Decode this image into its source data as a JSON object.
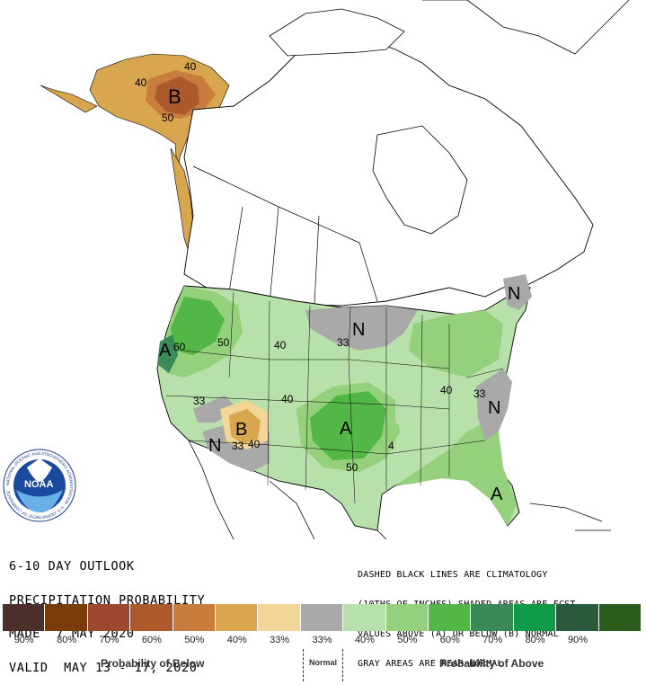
{
  "title_lines": [
    "6-10 DAY OUTLOOK",
    "PRECIPITATION PROBABILITY",
    "MADE  7 MAY 2020",
    "VALID  MAY 13 - 17, 2020"
  ],
  "note_lines": [
    "DASHED BLACK LINES ARE CLIMATOLOGY",
    "(10THS OF INCHES) SHADED AREAS ARE FCST",
    "VALUES ABOVE (A) OR BELOW (B) NORMAL",
    "GRAY AREAS ARE NEAR-NORMAL"
  ],
  "logo_text": "NOAA",
  "logo_ring_text": "NATIONAL OCEANIC AND ATMOSPHERIC ADMINISTRATION · U.S. DEPARTMENT OF COMMERCE",
  "legend": {
    "colors": [
      "#4a2f2a",
      "#7a3d0a",
      "#9c4830",
      "#ac5a2c",
      "#c97d3c",
      "#d9a650",
      "#f3d598",
      "#a9a9a9",
      "#b8e0aa",
      "#95d07c",
      "#52b746",
      "#3a8a57",
      "#0e9a46",
      "#2a5a3c",
      "#2a5a1c"
    ],
    "labels": [
      "90%",
      "80%",
      "70%",
      "60%",
      "50%",
      "40%",
      "33%",
      "33%",
      "40%",
      "50%",
      "60%",
      "70%",
      "80%",
      "90%",
      ""
    ],
    "below_caption": "Probability of Below",
    "normal_caption": "Normal",
    "above_caption": "Probability of Above"
  },
  "map_labels": {
    "alaska_b": "B",
    "alaska_40a": "40",
    "alaska_40b": "40",
    "alaska_50": "50",
    "west_a": "A",
    "west_60": "60",
    "west_50": "50",
    "west_40": "40",
    "n_plains": "N",
    "n_plains_33": "33",
    "sw_b": "B",
    "sw_n": "N",
    "sw_33a": "33",
    "sw_33b": "33",
    "sw_40a": "40",
    "sw_40b": "40",
    "plains_a": "A",
    "plains_50": "50",
    "plains_4": "4",
    "ne_n": "N",
    "ne_40": "40",
    "se_n": "N",
    "se_33": "33",
    "fl_a": "A"
  }
}
